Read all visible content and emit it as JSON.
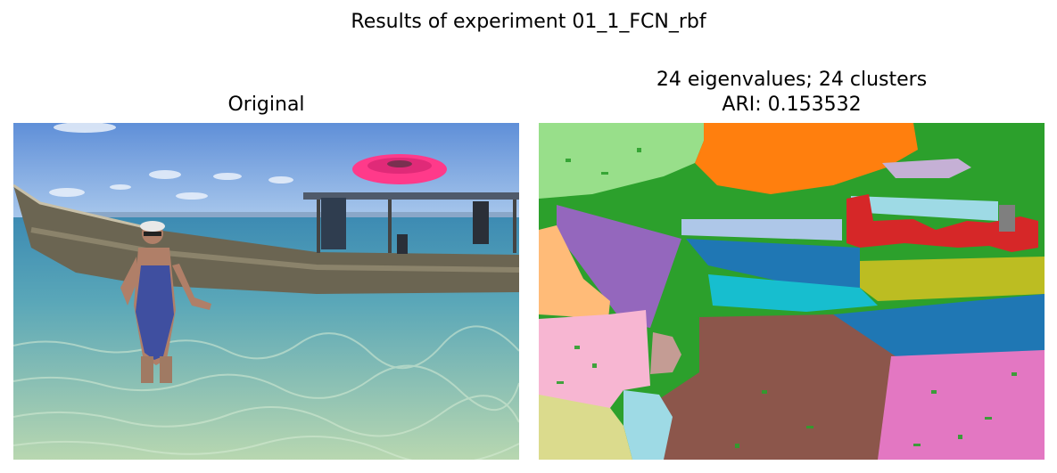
{
  "figure": {
    "title": "Results of experiment 01_1_FCN_rbf"
  },
  "panels": [
    {
      "title": "Original"
    },
    {
      "title_line1": "24 eigenvalues; 24 clusters",
      "title_line2": "ARI: 0.153532"
    }
  ],
  "colors": {
    "sky": "#6f9fe0",
    "sea": "#3f8fb0",
    "shallow_water": "#9cc8a6",
    "boat_hull": "#6b6552",
    "frisbee": "#ff3a8a",
    "seg_green": "#2ca02c",
    "seg_light_green": "#98df8a",
    "seg_orange": "#ff7f0e",
    "seg_red": "#d62728",
    "seg_purple": "#9467bd",
    "seg_lavender": "#c5b0d5",
    "seg_light_orange": "#ffbb78",
    "seg_pink": "#f7b6d2",
    "seg_magenta": "#e377c2",
    "seg_brown": "#8c564b",
    "seg_light_brown": "#c49c94",
    "seg_blue": "#1f77b4",
    "seg_light_blue": "#aec7e8",
    "seg_cyan": "#17becf",
    "seg_light_cyan": "#9edae5",
    "seg_olive": "#bcbd22",
    "seg_khaki": "#dbdb8d",
    "seg_gray": "#7f7f7f"
  }
}
